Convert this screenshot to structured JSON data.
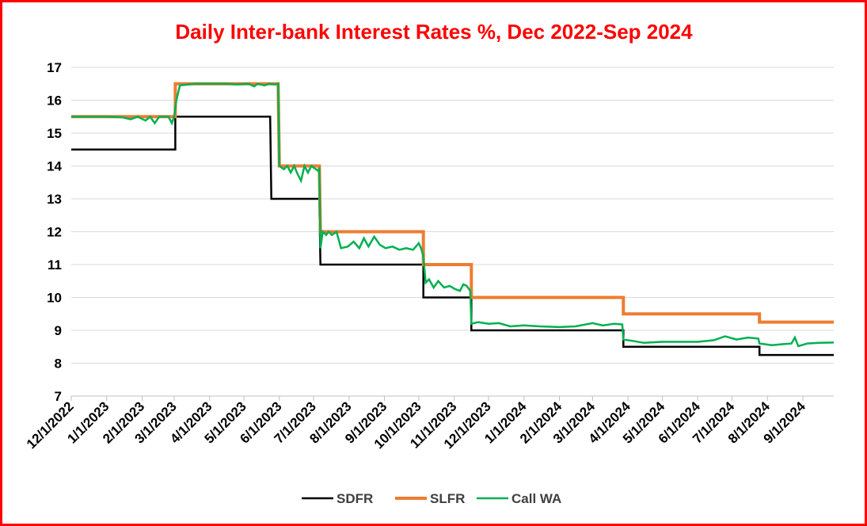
{
  "chart_data": {
    "type": "line",
    "title": "Daily Inter-bank Interest Rates %, Dec 2022-Sep 2024",
    "xlabel": "",
    "ylabel": "",
    "ylim": [
      7,
      17
    ],
    "yticks": [
      7,
      8,
      9,
      10,
      11,
      12,
      13,
      14,
      15,
      16,
      17
    ],
    "x_ticks": [
      "12/1/2022",
      "1/1/2023",
      "2/1/2023",
      "3/1/2023",
      "4/1/2023",
      "5/1/2023",
      "6/1/2023",
      "7/1/2023",
      "8/1/2023",
      "9/1/2023",
      "10/1/2023",
      "11/1/2023",
      "12/1/2023",
      "1/1/2024",
      "2/1/2024",
      "3/1/2024",
      "4/1/2024",
      "5/1/2024",
      "6/1/2024",
      "7/1/2024",
      "8/1/2024",
      "9/1/2024"
    ],
    "x_range": [
      "2022-12-01",
      "2024-09-28"
    ],
    "grid": "horizontal",
    "legend_position": "bottom",
    "series": [
      {
        "name": "SDFR",
        "color": "#000000",
        "step": true,
        "points": [
          [
            "2022-12-01",
            14.5
          ],
          [
            "2023-03-02",
            14.5
          ],
          [
            "2023-03-02",
            15.5
          ],
          [
            "2023-05-24",
            15.5
          ],
          [
            "2023-05-25",
            13.0
          ],
          [
            "2023-07-06",
            13.0
          ],
          [
            "2023-07-07",
            11.0
          ],
          [
            "2023-10-05",
            11.0
          ],
          [
            "2023-10-05",
            10.0
          ],
          [
            "2023-11-16",
            10.0
          ],
          [
            "2023-11-16",
            9.0
          ],
          [
            "2024-03-28",
            9.0
          ],
          [
            "2024-03-28",
            8.5
          ],
          [
            "2024-07-25",
            8.5
          ],
          [
            "2024-07-25",
            8.25
          ],
          [
            "2024-09-28",
            8.25
          ]
        ]
      },
      {
        "name": "SLFR",
        "color": "#ed7d31",
        "step": true,
        "points": [
          [
            "2022-12-01",
            15.5
          ],
          [
            "2023-03-02",
            15.5
          ],
          [
            "2023-03-02",
            16.5
          ],
          [
            "2023-05-31",
            16.5
          ],
          [
            "2023-06-01",
            14.0
          ],
          [
            "2023-07-06",
            14.0
          ],
          [
            "2023-07-07",
            12.0
          ],
          [
            "2023-10-05",
            12.0
          ],
          [
            "2023-10-05",
            11.0
          ],
          [
            "2023-11-16",
            11.0
          ],
          [
            "2023-11-16",
            10.0
          ],
          [
            "2024-03-28",
            10.0
          ],
          [
            "2024-03-28",
            9.5
          ],
          [
            "2024-07-25",
            9.5
          ],
          [
            "2024-07-25",
            9.25
          ],
          [
            "2024-09-28",
            9.25
          ]
        ]
      },
      {
        "name": "Call WA",
        "color": "#00b050",
        "step": false,
        "points": [
          [
            "2022-12-01",
            15.5
          ],
          [
            "2022-12-15",
            15.5
          ],
          [
            "2023-01-01",
            15.5
          ],
          [
            "2023-01-15",
            15.48
          ],
          [
            "2023-01-22",
            15.42
          ],
          [
            "2023-01-28",
            15.5
          ],
          [
            "2023-02-04",
            15.38
          ],
          [
            "2023-02-08",
            15.5
          ],
          [
            "2023-02-12",
            15.3
          ],
          [
            "2023-02-16",
            15.5
          ],
          [
            "2023-02-24",
            15.5
          ],
          [
            "2023-02-27",
            15.3
          ],
          [
            "2023-03-01",
            15.5
          ],
          [
            "2023-03-03",
            16.0
          ],
          [
            "2023-03-06",
            16.45
          ],
          [
            "2023-03-20",
            16.5
          ],
          [
            "2023-04-15",
            16.5
          ],
          [
            "2023-04-25",
            16.48
          ],
          [
            "2023-05-05",
            16.5
          ],
          [
            "2023-05-10",
            16.42
          ],
          [
            "2023-05-13",
            16.5
          ],
          [
            "2023-05-19",
            16.45
          ],
          [
            "2023-05-23",
            16.5
          ],
          [
            "2023-05-28",
            16.48
          ],
          [
            "2023-05-31",
            16.5
          ],
          [
            "2023-06-01",
            14.0
          ],
          [
            "2023-06-05",
            13.9
          ],
          [
            "2023-06-08",
            14.0
          ],
          [
            "2023-06-11",
            13.8
          ],
          [
            "2023-06-14",
            14.0
          ],
          [
            "2023-06-17",
            13.75
          ],
          [
            "2023-06-20",
            13.55
          ],
          [
            "2023-06-23",
            14.0
          ],
          [
            "2023-06-26",
            13.8
          ],
          [
            "2023-06-29",
            14.0
          ],
          [
            "2023-07-05",
            13.85
          ],
          [
            "2023-07-06",
            13.9
          ],
          [
            "2023-07-07",
            11.5
          ],
          [
            "2023-07-09",
            12.0
          ],
          [
            "2023-07-12",
            11.9
          ],
          [
            "2023-07-14",
            12.0
          ],
          [
            "2023-07-17",
            11.9
          ],
          [
            "2023-07-21",
            12.0
          ],
          [
            "2023-07-25",
            11.5
          ],
          [
            "2023-07-31",
            11.55
          ],
          [
            "2023-08-05",
            11.7
          ],
          [
            "2023-08-10",
            11.5
          ],
          [
            "2023-08-14",
            11.8
          ],
          [
            "2023-08-18",
            11.55
          ],
          [
            "2023-08-23",
            11.85
          ],
          [
            "2023-08-28",
            11.6
          ],
          [
            "2023-09-02",
            11.5
          ],
          [
            "2023-09-08",
            11.55
          ],
          [
            "2023-09-14",
            11.45
          ],
          [
            "2023-09-20",
            11.5
          ],
          [
            "2023-09-26",
            11.45
          ],
          [
            "2023-10-01",
            11.65
          ],
          [
            "2023-10-03",
            11.5
          ],
          [
            "2023-10-05",
            11.25
          ],
          [
            "2023-10-07",
            10.45
          ],
          [
            "2023-10-10",
            10.55
          ],
          [
            "2023-10-14",
            10.3
          ],
          [
            "2023-10-18",
            10.5
          ],
          [
            "2023-10-23",
            10.3
          ],
          [
            "2023-10-28",
            10.35
          ],
          [
            "2023-11-02",
            10.25
          ],
          [
            "2023-11-06",
            10.2
          ],
          [
            "2023-11-09",
            10.4
          ],
          [
            "2023-11-12",
            10.35
          ],
          [
            "2023-11-15",
            10.2
          ],
          [
            "2023-11-16",
            9.2
          ],
          [
            "2023-11-22",
            9.25
          ],
          [
            "2023-12-01",
            9.2
          ],
          [
            "2023-12-10",
            9.22
          ],
          [
            "2023-12-20",
            9.12
          ],
          [
            "2024-01-01",
            9.15
          ],
          [
            "2024-01-15",
            9.12
          ],
          [
            "2024-02-01",
            9.1
          ],
          [
            "2024-02-15",
            9.12
          ],
          [
            "2024-03-01",
            9.22
          ],
          [
            "2024-03-10",
            9.15
          ],
          [
            "2024-03-20",
            9.2
          ],
          [
            "2024-03-27",
            9.18
          ],
          [
            "2024-03-28",
            8.72
          ],
          [
            "2024-04-05",
            8.68
          ],
          [
            "2024-04-15",
            8.62
          ],
          [
            "2024-05-01",
            8.65
          ],
          [
            "2024-05-15",
            8.65
          ],
          [
            "2024-06-01",
            8.65
          ],
          [
            "2024-06-15",
            8.7
          ],
          [
            "2024-06-25",
            8.82
          ],
          [
            "2024-07-05",
            8.72
          ],
          [
            "2024-07-15",
            8.78
          ],
          [
            "2024-07-24",
            8.75
          ],
          [
            "2024-07-25",
            8.6
          ],
          [
            "2024-08-05",
            8.55
          ],
          [
            "2024-08-15",
            8.58
          ],
          [
            "2024-08-22",
            8.6
          ],
          [
            "2024-08-25",
            8.78
          ],
          [
            "2024-08-28",
            8.52
          ],
          [
            "2024-09-05",
            8.6
          ],
          [
            "2024-09-15",
            8.62
          ],
          [
            "2024-09-28",
            8.63
          ]
        ]
      }
    ]
  }
}
